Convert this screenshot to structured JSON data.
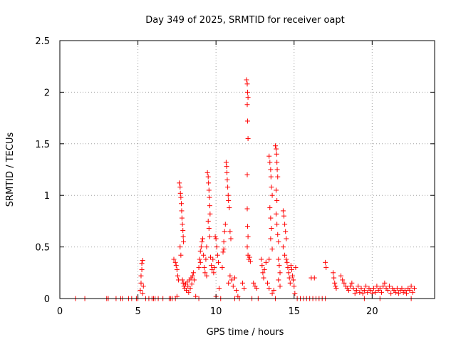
{
  "chart_data": {
    "type": "scatter",
    "title": "Day 349 of 2025, SRMTID for receiver oapt",
    "xlabel": "GPS time / hours",
    "ylabel": "SRMTID / TECUs",
    "xlim": [
      0,
      24
    ],
    "ylim": [
      0,
      2.5
    ],
    "xticks": [
      0,
      5,
      10,
      15,
      20
    ],
    "yticks": [
      0,
      0.5,
      1,
      1.5,
      2,
      2.5
    ],
    "xtick_labels": [
      "0",
      "5",
      "10",
      "15",
      "20"
    ],
    "ytick_labels": [
      "0",
      "0.5",
      "1",
      "1.5",
      "2",
      "2.5"
    ],
    "grid": true,
    "marker": "+",
    "marker_color": "#ff0000",
    "series": [
      {
        "name": "SRMTID",
        "points": [
          [
            1.0,
            0
          ],
          [
            1.6,
            0
          ],
          [
            3.0,
            0
          ],
          [
            3.1,
            0
          ],
          [
            3.6,
            0
          ],
          [
            3.9,
            0
          ],
          [
            4.0,
            0
          ],
          [
            4.4,
            0
          ],
          [
            4.6,
            0
          ],
          [
            4.9,
            0
          ],
          [
            5.0,
            0
          ],
          [
            5.15,
            0.08
          ],
          [
            5.2,
            0.15
          ],
          [
            5.2,
            0.22
          ],
          [
            5.25,
            0.28
          ],
          [
            5.25,
            0.34
          ],
          [
            5.3,
            0.37
          ],
          [
            5.3,
            0.05
          ],
          [
            5.35,
            0.12
          ],
          [
            5.5,
            0
          ],
          [
            5.7,
            0
          ],
          [
            5.9,
            0
          ],
          [
            6.0,
            0
          ],
          [
            6.1,
            0
          ],
          [
            6.3,
            0
          ],
          [
            6.6,
            0
          ],
          [
            7.0,
            0
          ],
          [
            7.1,
            0
          ],
          [
            7.2,
            0
          ],
          [
            7.3,
            0.38
          ],
          [
            7.4,
            0.35
          ],
          [
            7.45,
            0.32
          ],
          [
            7.5,
            0.28
          ],
          [
            7.55,
            0.22
          ],
          [
            7.6,
            0.18
          ],
          [
            7.5,
            0.02
          ],
          [
            7.4,
            0
          ],
          [
            7.65,
            1.12
          ],
          [
            7.7,
            1.08
          ],
          [
            7.72,
            1.02
          ],
          [
            7.75,
            0.98
          ],
          [
            7.78,
            0.92
          ],
          [
            7.8,
            0.85
          ],
          [
            7.82,
            0.78
          ],
          [
            7.85,
            0.72
          ],
          [
            7.88,
            0.66
          ],
          [
            7.9,
            0.6
          ],
          [
            7.92,
            0.55
          ],
          [
            7.7,
            0.5
          ],
          [
            7.75,
            0.42
          ],
          [
            7.85,
            0.18
          ],
          [
            7.9,
            0.15
          ],
          [
            7.95,
            0.12
          ],
          [
            8.0,
            0.1
          ],
          [
            8.05,
            0.14
          ],
          [
            8.1,
            0.08
          ],
          [
            8.15,
            0.16
          ],
          [
            8.2,
            0.12
          ],
          [
            8.25,
            0.06
          ],
          [
            8.3,
            0.18
          ],
          [
            8.35,
            0.1
          ],
          [
            8.4,
            0.2
          ],
          [
            8.45,
            0.14
          ],
          [
            8.5,
            0.22
          ],
          [
            8.55,
            0.25
          ],
          [
            8.6,
            0.18
          ],
          [
            8.7,
            0.02
          ],
          [
            8.9,
            0
          ],
          [
            8.9,
            0.3
          ],
          [
            8.95,
            0.38
          ],
          [
            9.0,
            0.46
          ],
          [
            9.05,
            0.5
          ],
          [
            9.1,
            0.55
          ],
          [
            9.15,
            0.58
          ],
          [
            9.2,
            0.42
          ],
          [
            9.0,
            0.35
          ],
          [
            9.25,
            0.3
          ],
          [
            9.3,
            0.25
          ],
          [
            9.35,
            0.38
          ],
          [
            9.4,
            0.22
          ],
          [
            9.45,
            1.22
          ],
          [
            9.5,
            1.18
          ],
          [
            9.52,
            1.12
          ],
          [
            9.55,
            1.05
          ],
          [
            9.58,
            0.98
          ],
          [
            9.6,
            0.9
          ],
          [
            9.62,
            0.82
          ],
          [
            9.5,
            0.75
          ],
          [
            9.55,
            0.68
          ],
          [
            9.6,
            0.6
          ],
          [
            9.4,
            0.5
          ],
          [
            9.65,
            0.4
          ],
          [
            9.7,
            0.32
          ],
          [
            9.75,
            0.28
          ],
          [
            9.8,
            0.38
          ],
          [
            9.85,
            0.25
          ],
          [
            9.9,
            0.3
          ],
          [
            9.95,
            0.6
          ],
          [
            10.0,
            0.58
          ],
          [
            10.05,
            0.5
          ],
          [
            10.1,
            0.42
          ],
          [
            10.15,
            0.35
          ],
          [
            10.2,
            0.1
          ],
          [
            10.0,
            0.02
          ],
          [
            10.3,
            0
          ],
          [
            10.4,
            0.3
          ],
          [
            10.45,
            0.45
          ],
          [
            10.5,
            0.55
          ],
          [
            10.55,
            0.65
          ],
          [
            10.6,
            0.72
          ],
          [
            10.5,
            0.48
          ],
          [
            10.65,
            1.32
          ],
          [
            10.68,
            1.28
          ],
          [
            10.7,
            1.22
          ],
          [
            10.72,
            1.15
          ],
          [
            10.75,
            1.08
          ],
          [
            10.78,
            1.0
          ],
          [
            10.8,
            0.95
          ],
          [
            10.85,
            0.88
          ],
          [
            10.9,
            0.65
          ],
          [
            10.95,
            0.58
          ],
          [
            10.8,
            0.15
          ],
          [
            10.9,
            0.22
          ],
          [
            11.0,
            0.18
          ],
          [
            11.1,
            0.12
          ],
          [
            11.2,
            0.2
          ],
          [
            11.3,
            0.08
          ],
          [
            11.4,
            0.02
          ],
          [
            11.2,
            0
          ],
          [
            11.5,
            0
          ],
          [
            11.7,
            0.15
          ],
          [
            11.8,
            0.1
          ],
          [
            11.95,
            2.12
          ],
          [
            12.0,
            2.08
          ],
          [
            12.02,
            2.0
          ],
          [
            12.05,
            1.95
          ],
          [
            12.0,
            1.88
          ],
          [
            12.02,
            1.72
          ],
          [
            12.05,
            1.55
          ],
          [
            12.0,
            1.2
          ],
          [
            12.0,
            0.87
          ],
          [
            12.02,
            0.7
          ],
          [
            12.05,
            0.6
          ],
          [
            12.0,
            0.5
          ],
          [
            12.05,
            0.42
          ],
          [
            12.1,
            0.38
          ],
          [
            12.15,
            0.4
          ],
          [
            12.2,
            0.36
          ],
          [
            12.4,
            0.15
          ],
          [
            12.5,
            0.12
          ],
          [
            12.6,
            0.1
          ],
          [
            12.3,
            0
          ],
          [
            12.7,
            0
          ],
          [
            12.9,
            0.38
          ],
          [
            12.95,
            0.32
          ],
          [
            13.0,
            0.25
          ],
          [
            13.05,
            0.2
          ],
          [
            13.1,
            0.28
          ],
          [
            13.2,
            0.35
          ],
          [
            13.3,
            0.15
          ],
          [
            13.4,
            0.1
          ],
          [
            13.4,
            1.38
          ],
          [
            13.45,
            1.32
          ],
          [
            13.5,
            1.25
          ],
          [
            13.52,
            1.18
          ],
          [
            13.55,
            1.08
          ],
          [
            13.6,
            1.0
          ],
          [
            13.45,
            0.88
          ],
          [
            13.5,
            0.78
          ],
          [
            13.55,
            0.68
          ],
          [
            13.5,
            0.58
          ],
          [
            13.6,
            0.48
          ],
          [
            13.4,
            0.38
          ],
          [
            13.6,
            0.05
          ],
          [
            13.7,
            0.08
          ],
          [
            13.8,
            0.0
          ],
          [
            13.8,
            1.48
          ],
          [
            13.85,
            1.45
          ],
          [
            13.88,
            1.4
          ],
          [
            13.9,
            1.32
          ],
          [
            13.92,
            1.25
          ],
          [
            13.95,
            1.18
          ],
          [
            13.85,
            1.05
          ],
          [
            13.9,
            0.95
          ],
          [
            13.85,
            0.82
          ],
          [
            13.9,
            0.72
          ],
          [
            13.95,
            0.62
          ],
          [
            14.0,
            0.55
          ],
          [
            14.0,
            0.38
          ],
          [
            14.05,
            0.32
          ],
          [
            14.1,
            0.25
          ],
          [
            14.0,
            0.18
          ],
          [
            14.1,
            0.12
          ],
          [
            14.3,
            0.85
          ],
          [
            14.35,
            0.8
          ],
          [
            14.4,
            0.72
          ],
          [
            14.45,
            0.65
          ],
          [
            14.5,
            0.58
          ],
          [
            14.3,
            0.5
          ],
          [
            14.4,
            0.42
          ],
          [
            14.5,
            0.38
          ],
          [
            14.55,
            0.35
          ],
          [
            14.6,
            0.3
          ],
          [
            14.65,
            0.25
          ],
          [
            14.7,
            0.2
          ],
          [
            14.75,
            0.15
          ],
          [
            14.8,
            0.32
          ],
          [
            14.85,
            0.28
          ],
          [
            14.9,
            0.22
          ],
          [
            14.95,
            0.18
          ],
          [
            15.0,
            0.12
          ],
          [
            15.1,
            0.3
          ],
          [
            15.05,
            0.05
          ],
          [
            15.2,
            0
          ],
          [
            15.4,
            0
          ],
          [
            15.6,
            0
          ],
          [
            15.8,
            0
          ],
          [
            16.0,
            0
          ],
          [
            16.2,
            0
          ],
          [
            16.4,
            0
          ],
          [
            16.6,
            0
          ],
          [
            16.8,
            0
          ],
          [
            17.0,
            0
          ],
          [
            16.1,
            0.2
          ],
          [
            16.3,
            0.2
          ],
          [
            17.0,
            0.35
          ],
          [
            17.05,
            0.3
          ],
          [
            17.5,
            0.25
          ],
          [
            17.55,
            0.2
          ],
          [
            17.6,
            0.15
          ],
          [
            17.65,
            0.12
          ],
          [
            17.7,
            0.1
          ],
          [
            18.0,
            0.22
          ],
          [
            18.1,
            0.18
          ],
          [
            18.2,
            0.15
          ],
          [
            18.3,
            0.12
          ],
          [
            18.4,
            0.1
          ],
          [
            18.5,
            0.08
          ],
          [
            18.6,
            0.12
          ],
          [
            18.7,
            0.15
          ],
          [
            18.8,
            0.1
          ],
          [
            18.9,
            0.05
          ],
          [
            19.0,
            0.08
          ],
          [
            19.1,
            0.12
          ],
          [
            19.2,
            0.06
          ],
          [
            19.3,
            0.1
          ],
          [
            19.4,
            0.05
          ],
          [
            19.5,
            0.08
          ],
          [
            19.6,
            0.12
          ],
          [
            19.7,
            0.06
          ],
          [
            19.8,
            0.1
          ],
          [
            19.9,
            0.08
          ],
          [
            20.0,
            0.05
          ],
          [
            20.1,
            0.1
          ],
          [
            20.2,
            0.06
          ],
          [
            20.3,
            0.12
          ],
          [
            20.4,
            0.08
          ],
          [
            20.5,
            0.1
          ],
          [
            20.6,
            0.06
          ],
          [
            20.7,
            0.12
          ],
          [
            20.8,
            0.15
          ],
          [
            20.9,
            0.1
          ],
          [
            21.0,
            0.08
          ],
          [
            21.1,
            0.12
          ],
          [
            21.2,
            0.05
          ],
          [
            21.3,
            0.1
          ],
          [
            21.4,
            0.08
          ],
          [
            21.5,
            0.06
          ],
          [
            21.6,
            0.1
          ],
          [
            21.7,
            0.05
          ],
          [
            21.8,
            0.08
          ],
          [
            21.9,
            0.1
          ],
          [
            22.0,
            0.06
          ],
          [
            22.1,
            0.08
          ],
          [
            22.2,
            0.05
          ],
          [
            22.3,
            0.1
          ],
          [
            22.4,
            0.08
          ],
          [
            22.5,
            0.12
          ],
          [
            22.6,
            0.06
          ],
          [
            22.7,
            0.1
          ],
          [
            19.5,
            0
          ],
          [
            20.5,
            0
          ],
          [
            22.5,
            0
          ]
        ]
      }
    ]
  }
}
